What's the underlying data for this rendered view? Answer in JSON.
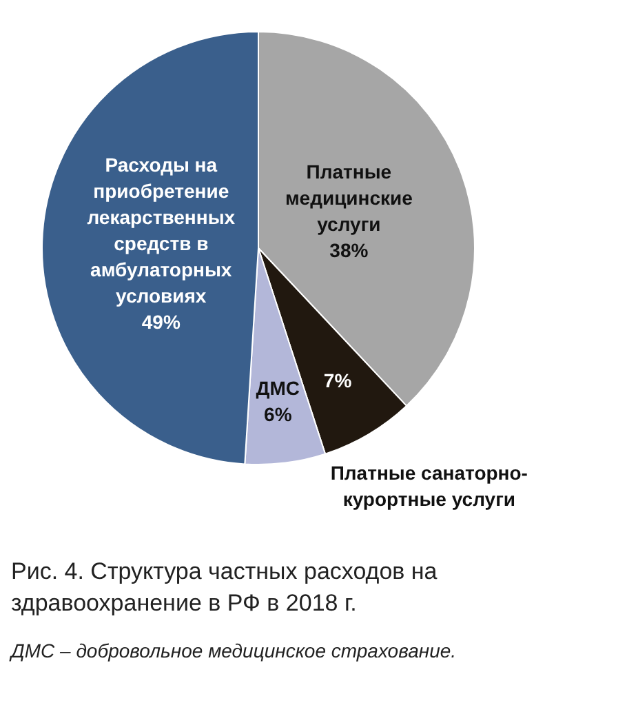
{
  "chart_data": {
    "type": "pie",
    "title": "Рис. 4. Структура частных расходов на здравоохранение в РФ в 2018 г.",
    "categories": [
      "Платные медицинские услуги",
      "Платные санаторно-курортные услуги",
      "ДМС",
      "Расходы на приобретение лекарственных средств в амбулаторных условиях"
    ],
    "values": [
      38,
      7,
      6,
      49
    ],
    "value_labels": [
      "38%",
      "7%",
      "6%",
      "49%"
    ],
    "colors": [
      "#a6a6a6",
      "#21180f",
      "#b3b7d9",
      "#3a5f8c"
    ],
    "annotations": [
      "ДМС – добровольное медицинское страхование."
    ],
    "legend": false
  }
}
